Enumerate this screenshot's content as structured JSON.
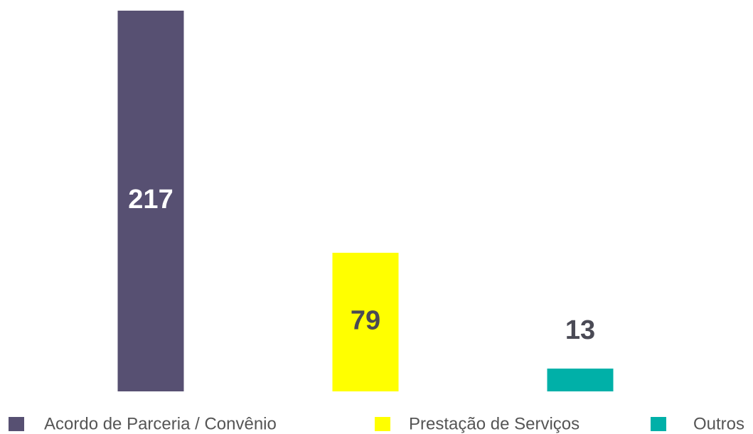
{
  "chart_data": {
    "type": "bar",
    "categories": [
      "Acordo de Parceria / Convênio",
      "Prestação de Serviços",
      "Outros"
    ],
    "values": [
      217,
      79,
      13
    ],
    "colors": [
      "#575072",
      "#ffff00",
      "#00b0a8"
    ],
    "legend": "bottom"
  }
}
